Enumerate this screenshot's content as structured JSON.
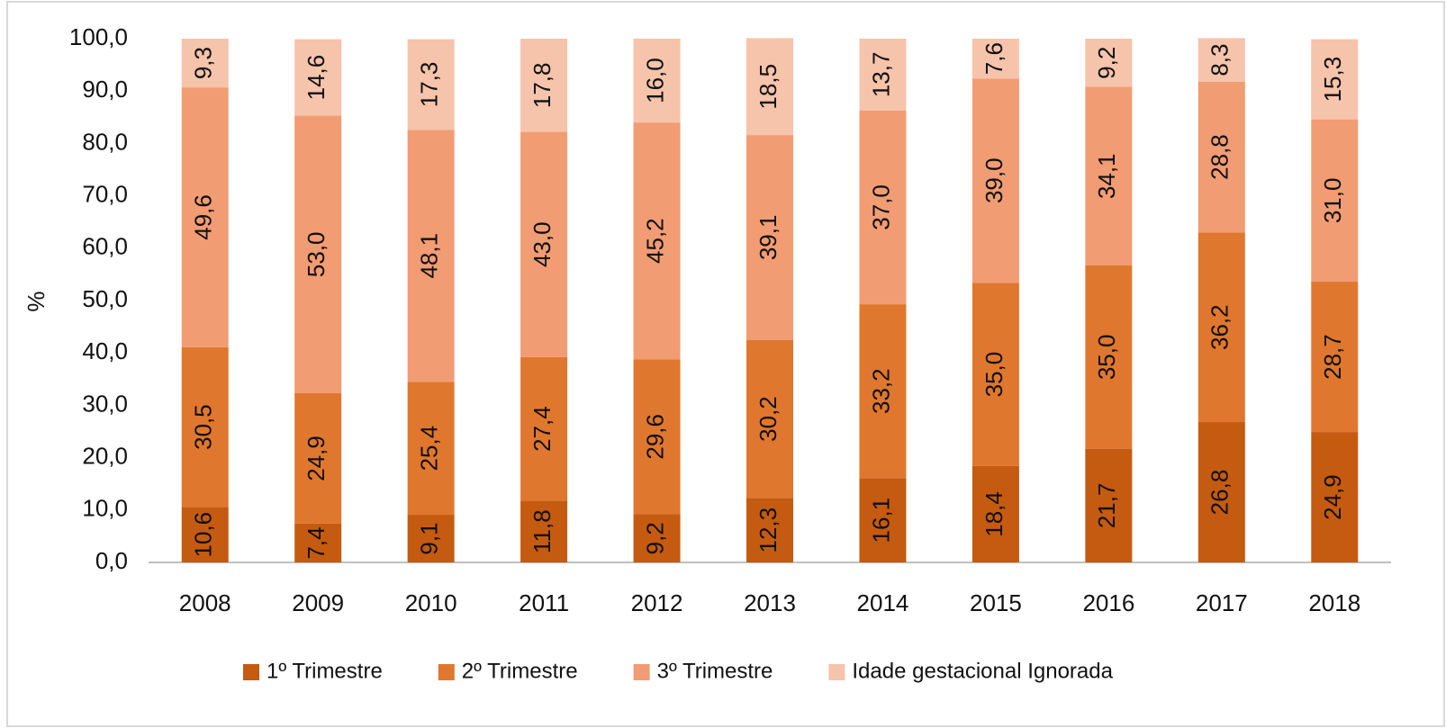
{
  "chart_data": {
    "type": "stacked_bar",
    "ylabel": "%",
    "categories": [
      "2008",
      "2009",
      "2010",
      "2011",
      "2012",
      "2013",
      "2014",
      "2015",
      "2016",
      "2017",
      "2018"
    ],
    "series": [
      {
        "name": "1º Trimestre",
        "color": "#c55a11",
        "values": [
          10.6,
          7.4,
          9.1,
          11.8,
          9.2,
          12.3,
          16.1,
          18.4,
          21.7,
          26.8,
          24.9
        ],
        "value_labels": [
          "10,6",
          "7,4",
          "9,1",
          "11,8",
          "9,2",
          "12,3",
          "16,1",
          "18,4",
          "21,7",
          "26,8",
          "24,9"
        ]
      },
      {
        "name": "2º Trimestre",
        "color": "#e0772e",
        "values": [
          30.5,
          24.9,
          25.4,
          27.4,
          29.6,
          30.2,
          33.2,
          35.0,
          35.0,
          36.2,
          28.7
        ],
        "value_labels": [
          "30,5",
          "24,9",
          "25,4",
          "27,4",
          "29,6",
          "30,2",
          "33,2",
          "35,0",
          "35,0",
          "36,2",
          "28,7"
        ]
      },
      {
        "name": "3º Trimestre",
        "color": "#f19c73",
        "values": [
          49.6,
          53.0,
          48.1,
          43.0,
          45.2,
          39.1,
          37.0,
          39.0,
          34.1,
          28.8,
          31.0
        ],
        "value_labels": [
          "49,6",
          "53,0",
          "48,1",
          "43,0",
          "45,2",
          "39,1",
          "37,0",
          "39,0",
          "34,1",
          "28,8",
          "31,0"
        ]
      },
      {
        "name": "Idade gestacional Ignorada",
        "color": "#f6c3ab",
        "values": [
          9.3,
          14.6,
          17.3,
          17.8,
          16.0,
          18.5,
          13.7,
          7.6,
          9.2,
          8.3,
          15.3
        ],
        "value_labels": [
          "9,3",
          "14,6",
          "17,3",
          "17,8",
          "16,0",
          "18,5",
          "13,7",
          "7,6",
          "9,2",
          "8,3",
          "15,3"
        ]
      }
    ],
    "ylim": [
      0,
      100
    ],
    "yticks": [
      {
        "value": 0,
        "label": "0,0"
      },
      {
        "value": 10,
        "label": "10,0"
      },
      {
        "value": 20,
        "label": "20,0"
      },
      {
        "value": 30,
        "label": "30,0"
      },
      {
        "value": 40,
        "label": "40,0"
      },
      {
        "value": 50,
        "label": "50,0"
      },
      {
        "value": 60,
        "label": "60,0"
      },
      {
        "value": 70,
        "label": "70,0"
      },
      {
        "value": 80,
        "label": "80,0"
      },
      {
        "value": 90,
        "label": "90,0"
      },
      {
        "value": 100,
        "label": "100,0"
      }
    ],
    "legend": "bottom"
  }
}
